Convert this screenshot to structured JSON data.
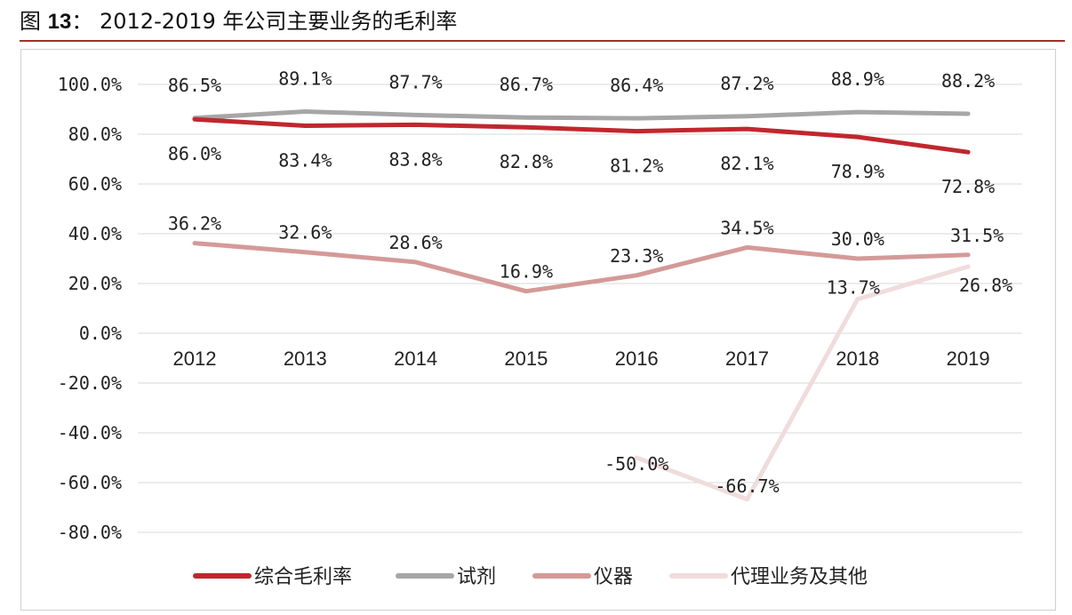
{
  "header": {
    "prefix": "图",
    "number": "13",
    "colon": "：",
    "title": "2012-2019 年公司主要业务的毛利率"
  },
  "chart_data": {
    "type": "line",
    "categories": [
      "2012",
      "2013",
      "2014",
      "2015",
      "2016",
      "2017",
      "2018",
      "2019"
    ],
    "ylim": [
      -80,
      100
    ],
    "yticks": [
      100,
      80,
      60,
      40,
      20,
      0,
      -20,
      -40,
      -60,
      -80
    ],
    "ytick_labels": [
      "100.0%",
      "80.0%",
      "60.0%",
      "40.0%",
      "20.0%",
      "0.0%",
      "-20.0%",
      "-40.0%",
      "-60.0%",
      "-80.0%"
    ],
    "grid": true,
    "legend_position": "bottom",
    "series": [
      {
        "name": "综合毛利率",
        "color": "#c0272d",
        "values": [
          86.0,
          83.4,
          83.8,
          82.8,
          81.2,
          82.1,
          78.9,
          72.8
        ],
        "labels": [
          "86.0%",
          "83.4%",
          "83.8%",
          "82.8%",
          "81.2%",
          "82.1%",
          "78.9%",
          "72.8%"
        ]
      },
      {
        "name": "试剂",
        "color": "#a6a6a6",
        "values": [
          86.5,
          89.1,
          87.7,
          86.7,
          86.4,
          87.2,
          88.9,
          88.2
        ],
        "labels": [
          "86.5%",
          "89.1%",
          "87.7%",
          "86.7%",
          "86.4%",
          "87.2%",
          "88.9%",
          "88.2%"
        ]
      },
      {
        "name": "仪器",
        "color": "#d49a98",
        "values": [
          36.2,
          32.6,
          28.6,
          16.9,
          23.3,
          34.5,
          30.0,
          31.5
        ],
        "labels": [
          "36.2%",
          "32.6%",
          "28.6%",
          "16.9%",
          "23.3%",
          "34.5%",
          "30.0%",
          "31.5%"
        ]
      },
      {
        "name": "代理业务及其他",
        "color": "#f0dcdc",
        "values": [
          null,
          null,
          null,
          null,
          -50.0,
          -66.7,
          13.7,
          26.8
        ],
        "labels": [
          null,
          null,
          null,
          null,
          "-50.0%",
          "-66.7%",
          "13.7%",
          "26.8%"
        ]
      }
    ]
  }
}
